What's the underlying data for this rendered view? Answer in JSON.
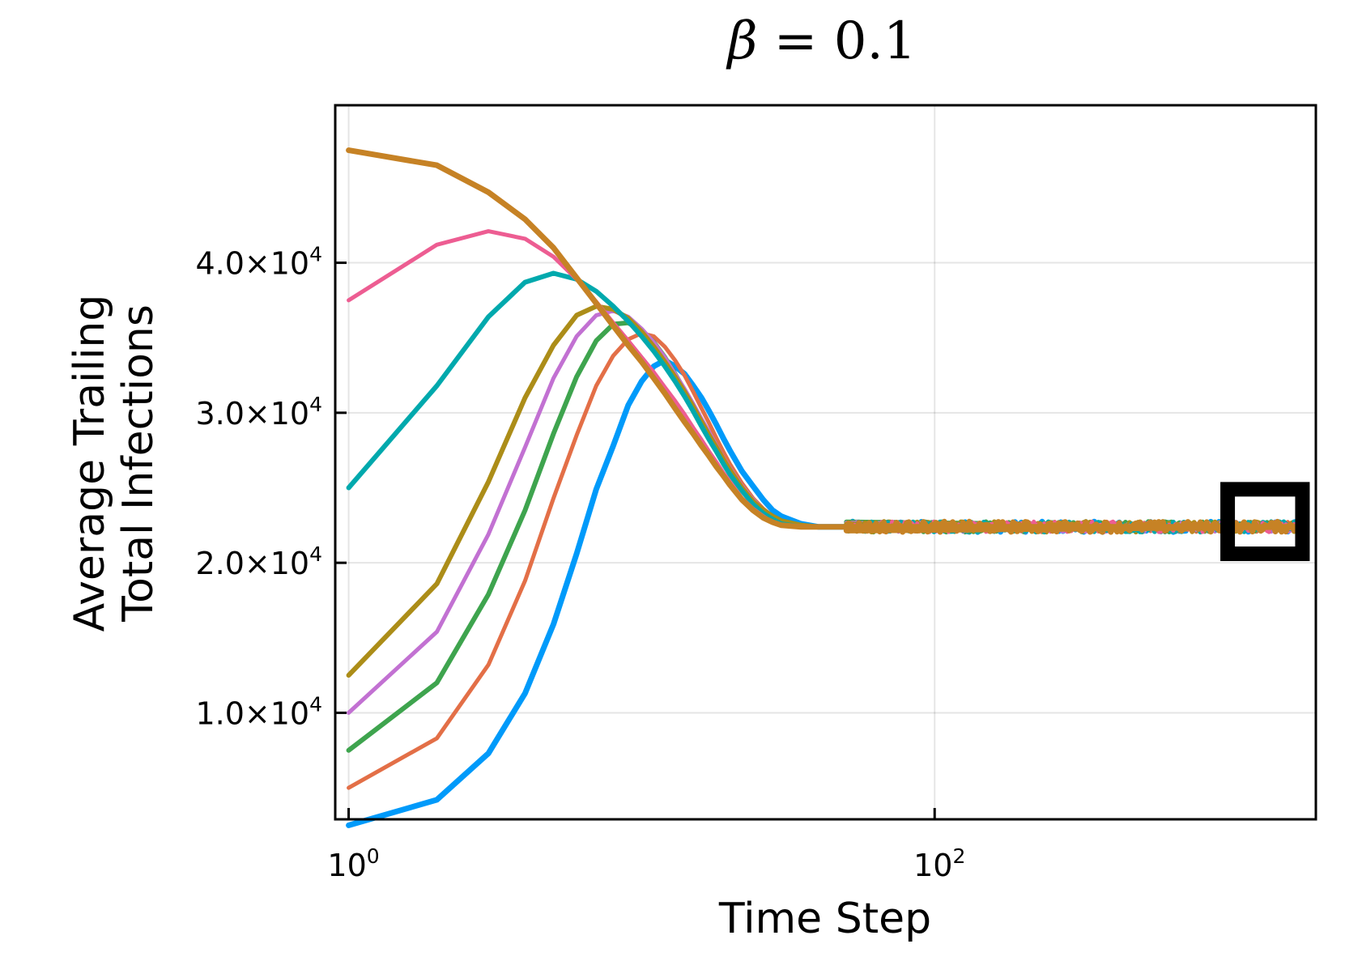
{
  "chart_data": {
    "type": "line",
    "title_symbol": "β",
    "title_rest": " = 0.1",
    "xlabel": "Time Step",
    "ylabel_lines": [
      "Average Trailing",
      "Total Infections"
    ],
    "xscale": "log10",
    "xlim": [
      0.9,
      2000
    ],
    "ylim": [
      2900,
      50500
    ],
    "grid": true,
    "legend": "none",
    "x_ticks": [
      {
        "value": 1,
        "base": "10",
        "exp": "0"
      },
      {
        "value": 100,
        "base": "10",
        "exp": "2"
      }
    ],
    "y_ticks": [
      {
        "value": 10000,
        "mantissa": "1.0×10",
        "exp": "4"
      },
      {
        "value": 20000,
        "mantissa": "2.0×10",
        "exp": "4"
      },
      {
        "value": 30000,
        "mantissa": "3.0×10",
        "exp": "4"
      },
      {
        "value": 40000,
        "mantissa": "4.0×10",
        "exp": "4"
      }
    ],
    "steady_state": 22400,
    "highlight_box": {
      "x_range": [
        1000,
        1800
      ],
      "y_range": [
        20600,
        24900
      ]
    },
    "x": [
      1,
      2,
      3,
      4,
      5,
      6,
      7,
      8,
      9,
      10,
      11,
      12,
      13,
      14,
      15,
      16,
      17,
      18,
      19,
      20,
      22,
      24,
      26,
      28,
      30,
      35,
      40,
      50,
      60,
      80,
      100,
      150,
      200,
      300,
      500,
      800,
      1200,
      1800
    ],
    "series": [
      {
        "color": "#009AFA",
        "width": 7,
        "values": [
          2500,
          4200,
          7300,
          11300,
          15900,
          20600,
          24900,
          27800,
          30500,
          32100,
          33100,
          33500,
          33100,
          32600,
          31800,
          31000,
          30100,
          29200,
          28300,
          27500,
          26100,
          25100,
          24200,
          23500,
          23100,
          22600,
          22400,
          22400,
          22400,
          22400,
          22400,
          22400,
          22400,
          22400,
          22400,
          22400,
          22400,
          22400
        ]
      },
      {
        "color": "#E36F47",
        "width": 5,
        "values": [
          5000,
          8300,
          13200,
          18800,
          24300,
          28500,
          31800,
          33800,
          34900,
          35300,
          35100,
          34400,
          33500,
          32500,
          31400,
          30300,
          29300,
          28300,
          27400,
          26600,
          25300,
          24300,
          23600,
          23100,
          22800,
          22500,
          22400,
          22400,
          22400,
          22400,
          22400,
          22400,
          22400,
          22400,
          22400,
          22400,
          22400,
          22400
        ]
      },
      {
        "color": "#3EA44E",
        "width": 6,
        "values": [
          7500,
          12000,
          17900,
          23500,
          28600,
          32400,
          34800,
          35900,
          36000,
          35500,
          34700,
          33700,
          32600,
          31500,
          30500,
          29500,
          28500,
          27700,
          26900,
          26200,
          25000,
          24100,
          23500,
          23100,
          22800,
          22500,
          22400,
          22400,
          22400,
          22400,
          22400,
          22400,
          22400,
          22400,
          22400,
          22400,
          22400,
          22400
        ]
      },
      {
        "color": "#C271D2",
        "width": 5,
        "values": [
          10000,
          15400,
          21900,
          27700,
          32300,
          35100,
          36500,
          36800,
          36400,
          35600,
          34700,
          33700,
          32600,
          31600,
          30600,
          29600,
          28700,
          27800,
          27000,
          26300,
          25100,
          24200,
          23500,
          23100,
          22800,
          22500,
          22400,
          22400,
          22400,
          22400,
          22400,
          22400,
          22400,
          22400,
          22400,
          22400,
          22400,
          22400
        ]
      },
      {
        "color": "#AC8D18",
        "width": 6,
        "values": [
          12500,
          18600,
          25400,
          31000,
          34500,
          36500,
          37100,
          36900,
          36300,
          35400,
          34400,
          33400,
          32400,
          31400,
          30400,
          29400,
          28500,
          27700,
          26900,
          26200,
          25000,
          24100,
          23500,
          23100,
          22800,
          22500,
          22400,
          22400,
          22400,
          22400,
          22400,
          22400,
          22400,
          22400,
          22400,
          22400,
          22400,
          22400
        ]
      },
      {
        "color": "#00A9AD",
        "width": 6,
        "values": [
          25000,
          31800,
          36400,
          38700,
          39300,
          38900,
          38100,
          37100,
          36100,
          35100,
          34100,
          33100,
          32100,
          31100,
          30100,
          29100,
          28200,
          27400,
          26600,
          25900,
          24800,
          23900,
          23300,
          22900,
          22600,
          22400,
          22400,
          22400,
          22400,
          22400,
          22400,
          22400,
          22400,
          22400,
          22400,
          22400,
          22400,
          22400
        ]
      },
      {
        "color": "#ED5D92",
        "width": 5,
        "values": [
          37500,
          41200,
          42100,
          41600,
          40400,
          38900,
          37400,
          36000,
          34800,
          33700,
          32700,
          31700,
          30800,
          29900,
          29000,
          28200,
          27400,
          26700,
          26000,
          25400,
          24300,
          23600,
          23100,
          22700,
          22500,
          22400,
          22400,
          22400,
          22400,
          22400,
          22400,
          22400,
          22400,
          22400,
          22400,
          22400,
          22400,
          22400
        ]
      },
      {
        "color": "#C68225",
        "width": 7,
        "values": [
          47500,
          46500,
          44700,
          42900,
          41000,
          39000,
          37300,
          35800,
          34500,
          33400,
          32300,
          31300,
          30300,
          29400,
          28600,
          27800,
          27100,
          26400,
          25800,
          25200,
          24200,
          23500,
          23000,
          22700,
          22500,
          22400,
          22400,
          22400,
          22400,
          22400,
          22400,
          22400,
          22400,
          22400,
          22400,
          22400,
          22400,
          22400
        ]
      }
    ]
  }
}
